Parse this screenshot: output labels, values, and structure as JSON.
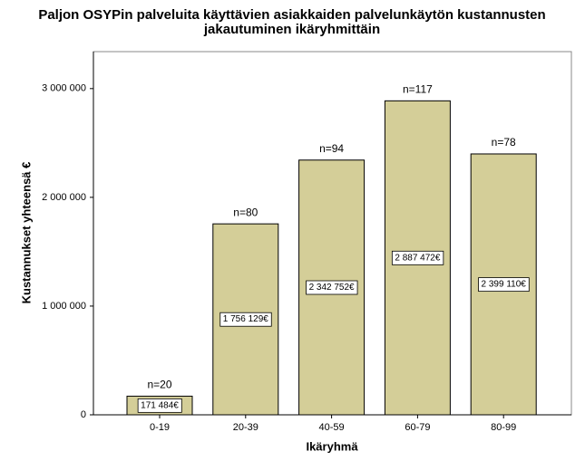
{
  "chart_data": {
    "type": "bar",
    "title": [
      "Paljon OSYPin palveluita käyttävien asiakkaiden palvelunkäytön kustannusten",
      "jakautuminen ikäryhmittäin"
    ],
    "x_label": "Ikäryhmä",
    "y_label": "Kustannukset yhteensä €",
    "categories": [
      "0-19",
      "20-39",
      "40-59",
      "60-79",
      "80-99"
    ],
    "values": [
      171484,
      1756129,
      2342752,
      2887472,
      2399110
    ],
    "value_labels": [
      "171 484€",
      "1 756 129€",
      "2 342 752€",
      "2 887 472€",
      "2 399 110€"
    ],
    "annotations": [
      "n=20",
      "n=80",
      "n=94",
      "n=117",
      "n=78"
    ],
    "color": "#d4ce98",
    "ylim": [
      0,
      3340000
    ],
    "yticks": [
      0,
      {
        "value": 1000000,
        "label": "1 000 000"
      },
      {
        "value": 2000000,
        "label": "2 000 000"
      },
      {
        "value": 3000000,
        "label": "3 000 000"
      }
    ]
  }
}
